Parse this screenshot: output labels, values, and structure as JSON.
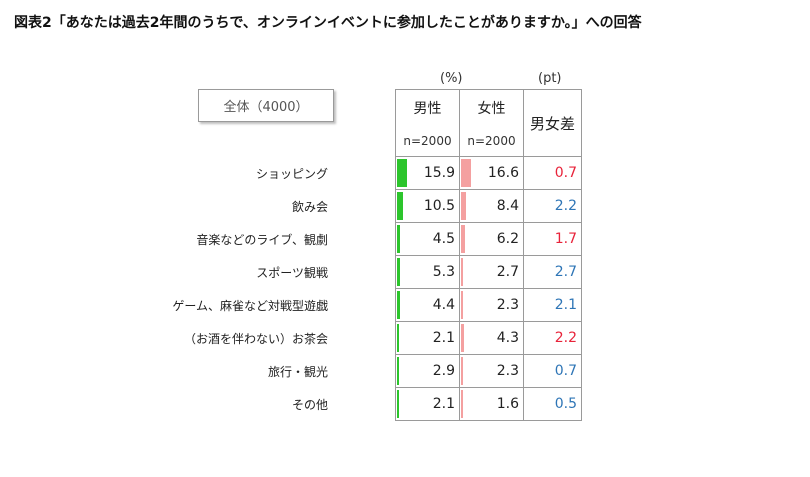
{
  "title": "図表2「あなたは過去2年間のうちで、オンラインイベントに参加したことがありますか。」への回答",
  "units": {
    "percent": "(%)",
    "points": "(pt)"
  },
  "total_label": "全体（4000）",
  "columns": {
    "male": {
      "label": "男性",
      "n": "n=2000"
    },
    "female": {
      "label": "女性",
      "n": "n=2000"
    },
    "diff": {
      "label": "男女差"
    }
  },
  "colors": {
    "male_bar": "#2cc52c",
    "female_bar": "#f4a0a0",
    "diff_positive": "#e8233a",
    "diff_negative": "#2e75b6"
  },
  "chart_data": {
    "type": "table",
    "categories": [
      "ショッピング",
      "飲み会",
      "音楽などのライブ、観劇",
      "スポーツ観戦",
      "ゲーム、麻雀など対戦型遊戯",
      "（お酒を伴わない）お茶会",
      "旅行・観光",
      "その他"
    ],
    "series": [
      {
        "name": "男性",
        "values": [
          15.9,
          10.5,
          4.5,
          5.3,
          4.4,
          2.1,
          2.9,
          2.1
        ]
      },
      {
        "name": "女性",
        "values": [
          16.6,
          8.4,
          6.2,
          2.7,
          2.3,
          4.3,
          2.3,
          1.6
        ]
      }
    ],
    "diff": {
      "name": "男女差",
      "values": [
        "0.7",
        "2.2",
        "1.7",
        "2.7",
        "2.1",
        "2.2",
        "0.7",
        "0.5"
      ],
      "direction": [
        "female",
        "male",
        "female",
        "male",
        "male",
        "female",
        "male",
        "male"
      ]
    },
    "bar_scale_max": 100
  }
}
